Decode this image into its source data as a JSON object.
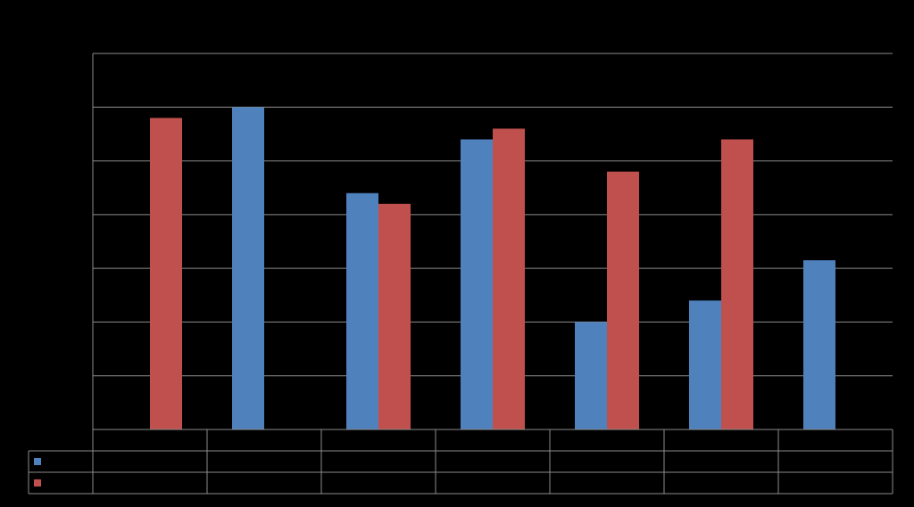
{
  "chart_data": {
    "type": "bar",
    "categories": [
      null,
      null,
      null,
      null,
      null,
      null,
      null
    ],
    "series": [
      {
        "color": "#4f81bd",
        "values": [
          null,
          6.0,
          4.4,
          5.4,
          2.0,
          2.4,
          3.15
        ]
      },
      {
        "color": "#c0504d",
        "values": [
          5.8,
          null,
          4.2,
          5.6,
          4.8,
          5.4,
          null
        ]
      }
    ],
    "ylim": [
      0,
      7
    ],
    "yticks": [
      0,
      1,
      2,
      3,
      4,
      5,
      6,
      7
    ],
    "grid": true,
    "legend": "data-table"
  }
}
